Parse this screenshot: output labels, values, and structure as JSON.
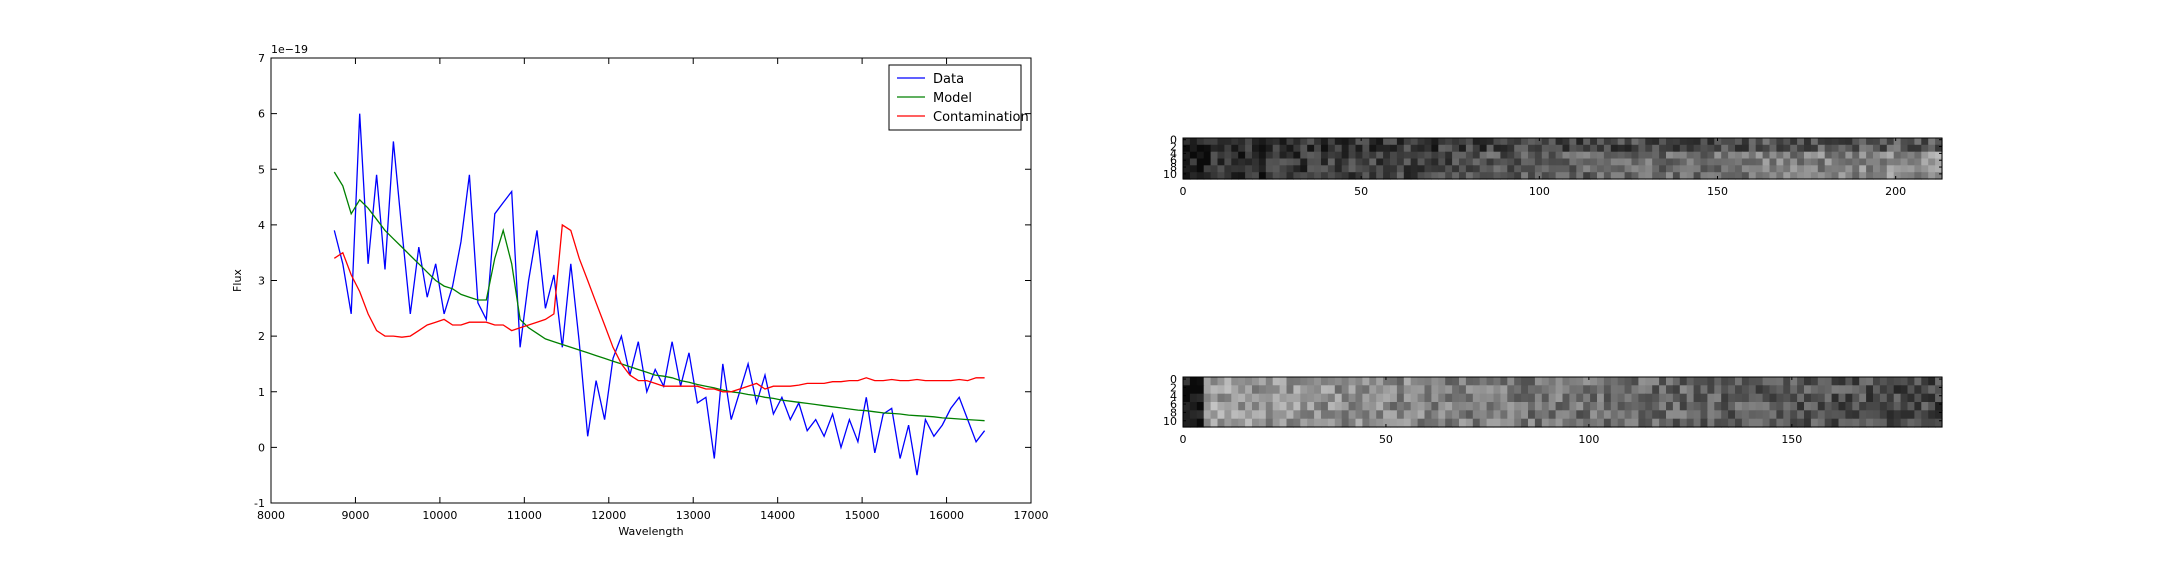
{
  "chart_data": [
    {
      "type": "line",
      "xlabel": "Wavelength",
      "ylabel": "Flux",
      "offset_text": "1e−19",
      "x": [
        8750,
        8850,
        8950,
        9050,
        9150,
        9250,
        9350,
        9450,
        9550,
        9650,
        9750,
        9850,
        9950,
        10050,
        10150,
        10250,
        10350,
        10450,
        10550,
        10650,
        10750,
        10850,
        10950,
        11050,
        11150,
        11250,
        11350,
        11450,
        11550,
        11650,
        11750,
        11850,
        11950,
        12050,
        12150,
        12250,
        12350,
        12450,
        12550,
        12650,
        12750,
        12850,
        12950,
        13050,
        13150,
        13250,
        13350,
        13450,
        13550,
        13650,
        13750,
        13850,
        13950,
        14050,
        14150,
        14250,
        14350,
        14450,
        14550,
        14650,
        14750,
        14850,
        14950,
        15050,
        15150,
        15250,
        15350,
        15450,
        15550,
        15650,
        15750,
        15850,
        15950,
        16050,
        16150,
        16250,
        16350,
        16450
      ],
      "series": [
        {
          "name": "Data",
          "color": "#0000ff",
          "values": [
            3.9,
            3.3,
            2.4,
            6.0,
            3.3,
            4.9,
            3.2,
            5.5,
            3.9,
            2.4,
            3.6,
            2.7,
            3.3,
            2.4,
            2.9,
            3.7,
            4.9,
            2.6,
            2.3,
            4.2,
            4.4,
            4.6,
            1.8,
            3.0,
            3.9,
            2.5,
            3.1,
            1.8,
            3.3,
            1.9,
            0.2,
            1.2,
            0.5,
            1.6,
            2.0,
            1.3,
            1.9,
            1.0,
            1.4,
            1.1,
            1.9,
            1.1,
            1.7,
            0.8,
            0.9,
            -0.2,
            1.5,
            0.5,
            1.0,
            1.5,
            0.8,
            1.3,
            0.6,
            0.9,
            0.5,
            0.8,
            0.3,
            0.5,
            0.2,
            0.6,
            0.0,
            0.5,
            0.1,
            0.9,
            -0.1,
            0.6,
            0.7,
            -0.2,
            0.4,
            -0.5,
            0.5,
            0.2,
            0.4,
            0.7,
            0.9,
            0.5,
            0.1,
            0.3
          ]
        },
        {
          "name": "Model",
          "color": "#008000",
          "values": [
            4.95,
            4.7,
            4.2,
            4.45,
            4.3,
            4.1,
            3.9,
            3.75,
            3.6,
            3.45,
            3.3,
            3.15,
            3.0,
            2.9,
            2.85,
            2.75,
            2.7,
            2.65,
            2.65,
            3.4,
            3.9,
            3.3,
            2.3,
            2.15,
            2.05,
            1.95,
            1.9,
            1.85,
            1.8,
            1.75,
            1.7,
            1.65,
            1.6,
            1.55,
            1.5,
            1.45,
            1.4,
            1.35,
            1.3,
            1.28,
            1.25,
            1.2,
            1.17,
            1.13,
            1.1,
            1.07,
            1.03,
            1.0,
            0.98,
            0.95,
            0.93,
            0.9,
            0.88,
            0.85,
            0.83,
            0.81,
            0.79,
            0.77,
            0.75,
            0.73,
            0.71,
            0.69,
            0.67,
            0.66,
            0.64,
            0.62,
            0.61,
            0.6,
            0.58,
            0.57,
            0.56,
            0.55,
            0.53,
            0.52,
            0.51,
            0.5,
            0.49,
            0.48
          ]
        },
        {
          "name": "Contamination",
          "color": "#ff0000",
          "values": [
            3.4,
            3.5,
            3.1,
            2.8,
            2.4,
            2.1,
            2.0,
            2.0,
            1.98,
            2.0,
            2.1,
            2.2,
            2.25,
            2.3,
            2.2,
            2.2,
            2.25,
            2.25,
            2.25,
            2.2,
            2.2,
            2.1,
            2.15,
            2.2,
            2.25,
            2.3,
            2.4,
            4.0,
            3.9,
            3.4,
            3.0,
            2.6,
            2.2,
            1.8,
            1.5,
            1.3,
            1.2,
            1.2,
            1.15,
            1.1,
            1.1,
            1.1,
            1.1,
            1.1,
            1.05,
            1.05,
            1.0,
            1.0,
            1.05,
            1.1,
            1.15,
            1.05,
            1.1,
            1.1,
            1.1,
            1.12,
            1.15,
            1.15,
            1.15,
            1.18,
            1.18,
            1.2,
            1.2,
            1.25,
            1.2,
            1.2,
            1.22,
            1.2,
            1.2,
            1.22,
            1.2,
            1.2,
            1.2,
            1.2,
            1.22,
            1.2,
            1.25,
            1.25
          ]
        }
      ],
      "xlim": [
        8000,
        17000
      ],
      "xticks": [
        8000,
        9000,
        10000,
        11000,
        12000,
        13000,
        14000,
        15000,
        16000,
        17000
      ],
      "ylim": [
        -1,
        7
      ],
      "yticks": [
        -1,
        0,
        1,
        2,
        3,
        4,
        5,
        6,
        7
      ],
      "legend": "upper right"
    },
    {
      "type": "image",
      "xlim": [
        0,
        213
      ],
      "xticks": [
        0,
        50,
        100,
        150,
        200
      ],
      "ylim": [
        11.5,
        -0.5
      ],
      "yticks": [
        0,
        2,
        4,
        6,
        8,
        10
      ]
    },
    {
      "type": "image",
      "xlim": [
        0,
        187
      ],
      "xticks": [
        0,
        50,
        100,
        150
      ],
      "ylim": [
        11.5,
        -0.5
      ],
      "yticks": [
        0,
        2,
        4,
        6,
        8,
        10
      ]
    }
  ]
}
